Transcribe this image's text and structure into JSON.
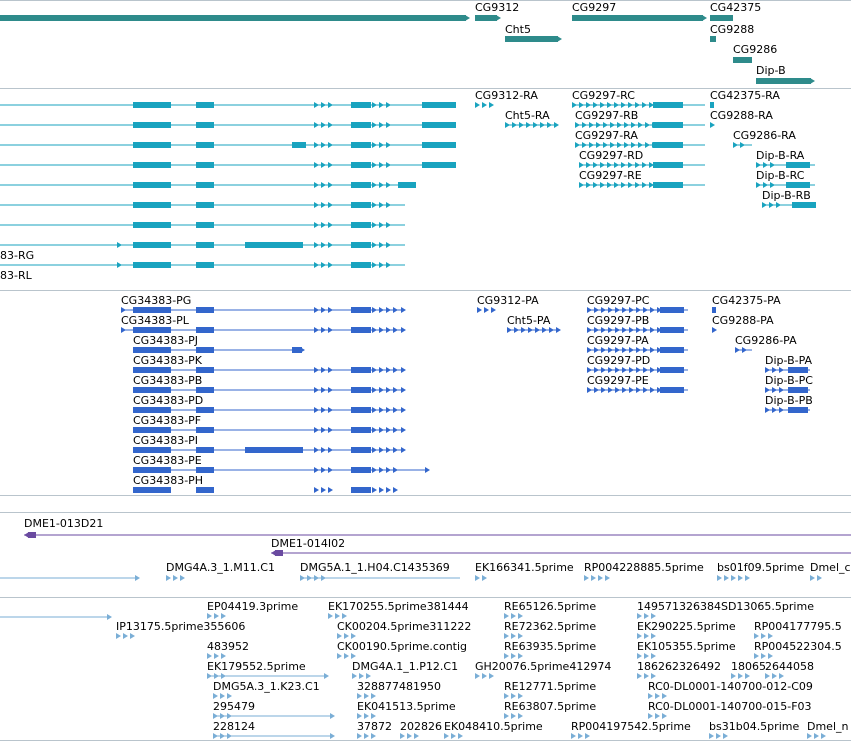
{
  "tracks": {
    "genes_summary": {
      "labels": [
        "CG9312",
        "Cht5",
        "CG9297",
        "CG42375",
        "CG9288",
        "CG9286",
        "Dip-B"
      ],
      "color": "#2e8b8b"
    },
    "transcripts_right": {
      "labels": [
        "CG9312-RA",
        "Cht5-RA",
        "CG9297-RC",
        "CG9297-RB",
        "CG9297-RA",
        "CG9297-RD",
        "CG9297-RE",
        "CG42375-RA",
        "CG9288-RA",
        "CG9286-RA",
        "Dip-B-RA",
        "Dip-B-RC",
        "Dip-B-RB"
      ],
      "left_labels": [
        "83-RG",
        "83-RL"
      ],
      "color": "#19a3bf"
    },
    "proteins": {
      "left_labels": [
        "CG34383-PG",
        "CG34383-PL",
        "CG34383-PJ",
        "CG34383-PK",
        "CG34383-PB",
        "CG34383-PD",
        "CG34383-PF",
        "CG34383-PI",
        "CG34383-PE",
        "CG34383-PH"
      ],
      "right_labels": [
        "CG9312-PA",
        "Cht5-PA",
        "CG9297-PC",
        "CG9297-PB",
        "CG9297-PA",
        "CG9297-PD",
        "CG9297-PE",
        "CG42375-PA",
        "CG9288-PA",
        "CG9286-PA",
        "Dip-B-PA",
        "Dip-B-PC",
        "Dip-B-PB"
      ],
      "color": "#3366cc"
    },
    "clones": {
      "labels": [
        "DME1-013D21",
        "DME1-014I02"
      ],
      "color": "#6a4aa0"
    },
    "ests_row1": {
      "labels": [
        "DMG4A.3_1.M11.C1",
        "DMG5A.1_1.H04.C1435369",
        "EK166341.5prime",
        "RP004228885.5prime",
        "bs01f09.5prime",
        "Dmel_c"
      ],
      "color": "#7aaed6"
    },
    "ests_block": {
      "labels": [
        "EP04419.3prime",
        "IP13175.5prime355606",
        "483952",
        "EK179552.5prime",
        "DMG5A.3_1.K23.C1",
        "295479",
        "228124",
        "EK170255.5prime381444",
        "CK00204.5prime311222",
        "CK00190.5prime.contig",
        "DMG4A.1_1.P12.C1",
        "328877481950",
        "EK041513.5prime",
        "37872",
        "202826",
        "EK048410.5prime",
        "RE65126.5prime",
        "RE72362.5prime",
        "RE63935.5prime",
        "GH20076.5prime412974",
        "RE12771.5prime",
        "RE63807.5prime",
        "RP004197542.5prime",
        "149571326384SD13065.5prime",
        "EK290225.5prime",
        "RP004177795.5",
        "EK105355.5prime",
        "RP004522304.5",
        "186262326492",
        "18065",
        "2644058",
        "RC0-DL0001-140700-012-C09",
        "RC0-DL0001-140700-015-F03",
        "bs31b04.5prime",
        "Dmel_n"
      ],
      "color": "#7aaed6"
    }
  }
}
